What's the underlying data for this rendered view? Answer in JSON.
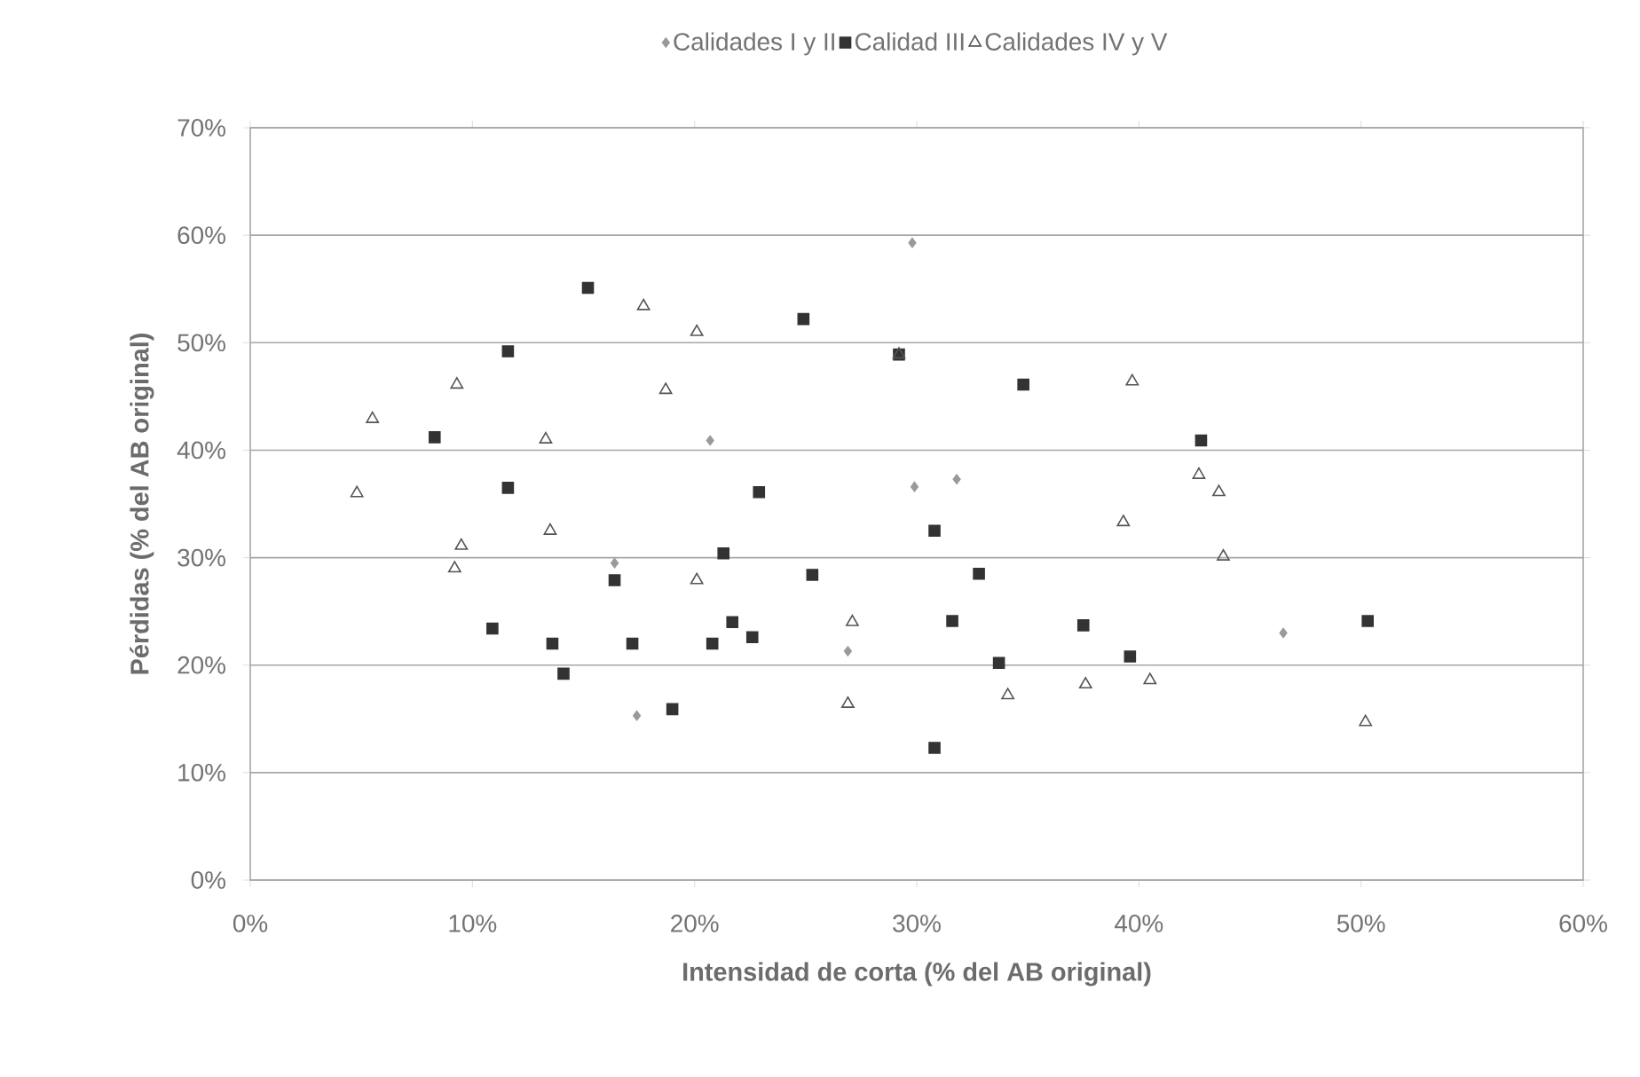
{
  "chart_data": {
    "type": "scatter",
    "xlabel": "Intensidad de corta (% del AB original)",
    "ylabel": "Pérdidas (% del AB original)",
    "xlim": [
      0,
      60
    ],
    "ylim": [
      0,
      70
    ],
    "xticks": [
      {
        "value": 0,
        "label": "0%"
      },
      {
        "value": 10,
        "label": "10%"
      },
      {
        "value": 20,
        "label": "20%"
      },
      {
        "value": 30,
        "label": "30%"
      },
      {
        "value": 40,
        "label": "40%"
      },
      {
        "value": 50,
        "label": "50%"
      },
      {
        "value": 60,
        "label": "60%"
      }
    ],
    "yticks": [
      {
        "value": 0,
        "label": "0%"
      },
      {
        "value": 10,
        "label": "10%"
      },
      {
        "value": 20,
        "label": "20%"
      },
      {
        "value": 30,
        "label": "30%"
      },
      {
        "value": 40,
        "label": "40%"
      },
      {
        "value": 50,
        "label": "50%"
      },
      {
        "value": 60,
        "label": "60%"
      },
      {
        "value": 70,
        "label": "70%"
      }
    ],
    "grid": "y",
    "legend": "top",
    "series": [
      {
        "name": "Calidades I y II",
        "color": "#9a9a9a",
        "marker": "diamond",
        "x": [
          16.4,
          17.4,
          20.7,
          29.8,
          29.9,
          31.8,
          26.9,
          46.5
        ],
        "values": [
          29.5,
          15.3,
          40.9,
          59.3,
          36.6,
          37.3,
          21.3,
          23.0
        ]
      },
      {
        "name": "Calidad III",
        "color": "#333333",
        "marker": "square",
        "x": [
          15.2,
          11.6,
          8.3,
          11.6,
          22.9,
          21.3,
          16.4,
          10.9,
          13.6,
          17.2,
          20.8,
          21.7,
          22.6,
          14.1,
          19.0,
          24.9,
          29.2,
          34.8,
          30.8,
          25.3,
          32.8,
          31.6,
          37.5,
          33.7,
          39.6,
          30.8,
          42.8,
          50.3
        ],
        "values": [
          55.1,
          49.2,
          41.2,
          36.5,
          36.1,
          30.4,
          27.9,
          23.4,
          22.0,
          22.0,
          22.0,
          24.0,
          22.6,
          19.2,
          15.9,
          52.2,
          48.9,
          46.1,
          32.5,
          28.4,
          28.5,
          24.1,
          23.7,
          20.2,
          20.8,
          12.3,
          40.9,
          24.1
        ]
      },
      {
        "name": "Calidades IV y V",
        "color": "#555555",
        "marker": "triangle",
        "x": [
          17.7,
          20.1,
          9.3,
          18.7,
          5.5,
          13.3,
          4.8,
          13.5,
          9.5,
          9.2,
          20.1,
          29.2,
          39.7,
          39.3,
          27.1,
          26.9,
          34.1,
          37.6,
          40.5,
          42.7,
          43.6,
          43.8,
          50.2
        ],
        "values": [
          53.4,
          51.0,
          46.1,
          45.6,
          42.9,
          41.0,
          36.0,
          32.5,
          31.1,
          29.0,
          27.9,
          48.9,
          46.4,
          33.3,
          24.0,
          16.4,
          17.2,
          18.2,
          18.6,
          37.7,
          36.1,
          30.1,
          14.7
        ]
      }
    ]
  }
}
